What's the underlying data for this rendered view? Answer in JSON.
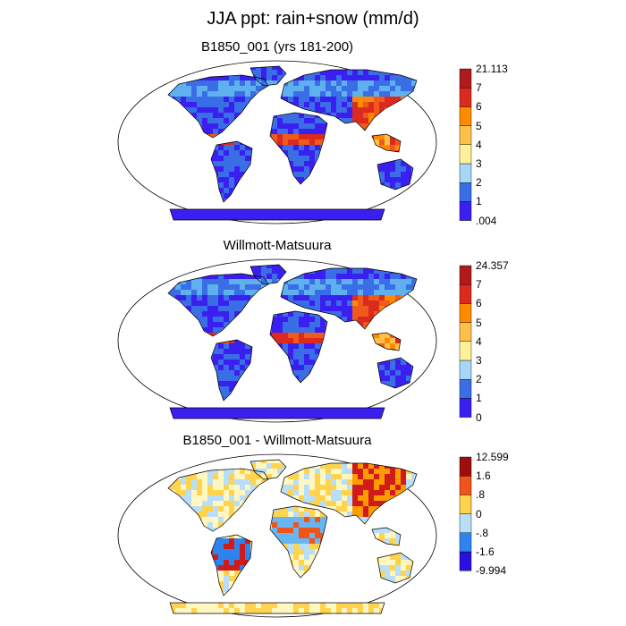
{
  "main_title": "JJA ppt: rain+snow (mm/d)",
  "colors": {
    "precip_levels": [
      "#3b1ff0",
      "#3a6ee6",
      "#5fb0ee",
      "#a7d7f6",
      "#fff09a",
      "#ffc04a",
      "#ff8a00",
      "#f05a1c",
      "#dd2a1f",
      "#b01a1a"
    ],
    "diff_levels": [
      "#2a10e0",
      "#2d4fe3",
      "#2e84ee",
      "#67b6f3",
      "#b9defa",
      "#fff7c0",
      "#ffd34d",
      "#ff9a00",
      "#f0541a",
      "#d11a1a",
      "#9e0e0e"
    ],
    "ocean": "#ffffff",
    "coast": "#000000"
  },
  "chart_data": [
    {
      "type": "heatmap",
      "title": "B1850_001 (yrs 181-200)",
      "colorbar_labels": [
        "21.113",
        "7",
        "6",
        "5",
        "4",
        "3",
        "2",
        "1",
        ".004"
      ],
      "colorbar_min": 0.004,
      "colorbar_max": 21.113,
      "levels": [
        0.004,
        1,
        2,
        3,
        4,
        5,
        6,
        7,
        21.113
      ]
    },
    {
      "type": "heatmap",
      "title": "Willmott-Matsuura",
      "colorbar_labels": [
        "24.357",
        "7",
        "6",
        "5",
        "4",
        "3",
        "2",
        "1",
        "0"
      ],
      "colorbar_min": 0,
      "colorbar_max": 24.357,
      "levels": [
        0,
        1,
        2,
        3,
        4,
        5,
        6,
        7,
        24.357
      ]
    },
    {
      "type": "heatmap",
      "title": "B1850_001 - Willmott-Matsuura",
      "colorbar_labels": [
        "12.599",
        "1.6",
        ".8",
        "0",
        "-.8",
        "-1.6",
        "-9.994"
      ],
      "colorbar_min": -9.994,
      "colorbar_max": 12.599,
      "levels": [
        -9.994,
        -1.6,
        -0.8,
        0,
        0.8,
        1.6,
        12.599
      ]
    }
  ]
}
